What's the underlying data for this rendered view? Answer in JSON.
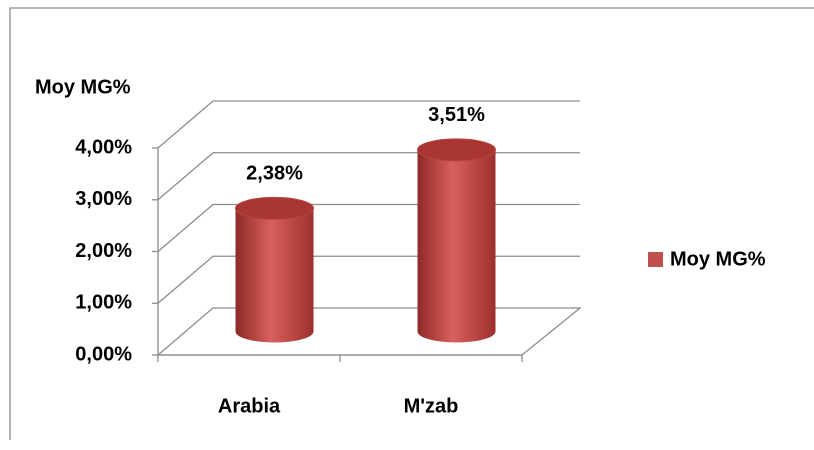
{
  "chart_data": {
    "type": "bar",
    "y_label": "Moy MG%",
    "categories": [
      "Arabia",
      "M'zab"
    ],
    "series": [
      {
        "name": "Moy MG%",
        "color": "#c0504d",
        "values": [
          2.38,
          3.51
        ],
        "value_labels": [
          "2,38%",
          "3,51%"
        ]
      }
    ],
    "ylim": [
      0,
      4
    ],
    "yticks": [
      {
        "value": 0,
        "label": "0,00%"
      },
      {
        "value": 1,
        "label": "1,00%"
      },
      {
        "value": 2,
        "label": "2,00%"
      },
      {
        "value": 3,
        "label": "3,00%"
      },
      {
        "value": 4,
        "label": "4,00%"
      }
    ],
    "grid": true,
    "legend": "right"
  }
}
